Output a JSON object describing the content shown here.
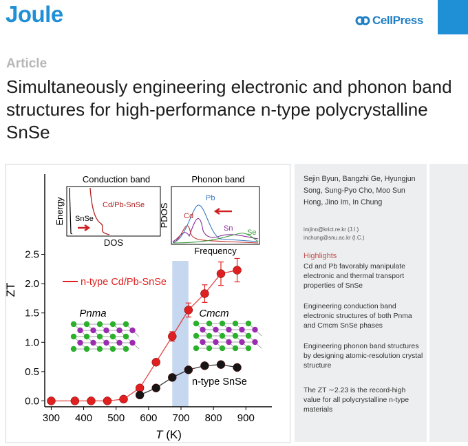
{
  "header": {
    "journal": "Joule",
    "publisher": "CellPress",
    "logo_icon": "cellpress-logo-icon",
    "brand_color": "#1f8fd6"
  },
  "article_type": "Article",
  "title": "Simultaneously engineering electronic and phonon band structures for high-performance n-type polycrystalline SnSe",
  "authors": "Sejin Byun, Bangzhi Ge, Hyungjun Song, Sung-Pyo Cho, Moo Sun Hong, Jino Im, In Chung",
  "emails": [
    "imjino@krict.re.kr (J.I.)",
    "inchung@snu.ac.kr (I.C.)"
  ],
  "highlights": {
    "title": "Highlights",
    "items": [
      "Cd and Pb favorably manipulate electronic and thermal transport properties of SnSe",
      "Engineering conduction band electronic structures of both Pnma and Cmcm SnSe phases",
      "Engineering phonon band structures by designing atomic-resolution crystal structure",
      "The ZT ∼2.23 is the record-high value for all polycrystalline n-type materials"
    ]
  },
  "chart_data": {
    "type": "scatter",
    "xlabel": "T (K)",
    "ylabel": "ZT",
    "xlim": [
      280,
      980
    ],
    "ylim": [
      -0.1,
      2.6
    ],
    "xticks": [
      300,
      400,
      500,
      600,
      700,
      800,
      900
    ],
    "yticks": [
      0.0,
      0.5,
      1.0,
      1.5,
      2.0,
      2.5
    ],
    "xtick_labels": [
      "300",
      "400",
      "500",
      "600",
      "700",
      "800",
      "900"
    ],
    "ytick_labels": [
      "0.0",
      "0.5",
      "1.0",
      "1.5",
      "2.0",
      "2.5"
    ],
    "highlight_band": [
      673,
      723
    ],
    "phase_labels": [
      "Pnma",
      "Cmcm"
    ],
    "series": [
      {
        "name": "n-type Cd/Pb-SnSe",
        "color": "#e02020",
        "x": [
          300,
          373,
          423,
          473,
          523,
          573,
          623,
          673,
          723,
          773,
          823,
          873
        ],
        "y": [
          0.0,
          0.0,
          0.0,
          0.0,
          0.03,
          0.22,
          0.66,
          1.1,
          1.55,
          1.83,
          2.17,
          2.23
        ],
        "yerr": [
          0,
          0,
          0,
          0,
          0,
          0,
          0,
          0.08,
          0.12,
          0.15,
          0.2,
          0.2
        ]
      },
      {
        "name": "n-type SnSe",
        "color": "#151515",
        "x": [
          573,
          623,
          673,
          723,
          773,
          823,
          873
        ],
        "y": [
          0.1,
          0.22,
          0.4,
          0.53,
          0.6,
          0.62,
          0.57
        ],
        "yerr": []
      }
    ],
    "inset_left": {
      "title": "Conduction band",
      "ylabel": "Energy",
      "xlabel": "DOS",
      "labels": [
        "SnSe",
        "Cd/Pb-SnSe"
      ]
    },
    "inset_right": {
      "title": "Phonon band",
      "ylabel": "PDOS",
      "xlabel": "Frequency",
      "labels": [
        "Pb",
        "Cd",
        "Sn",
        "Se"
      ],
      "colors": [
        "#3a78c2",
        "#c0302c",
        "#8b2f9b",
        "#3a9a3a"
      ]
    }
  }
}
